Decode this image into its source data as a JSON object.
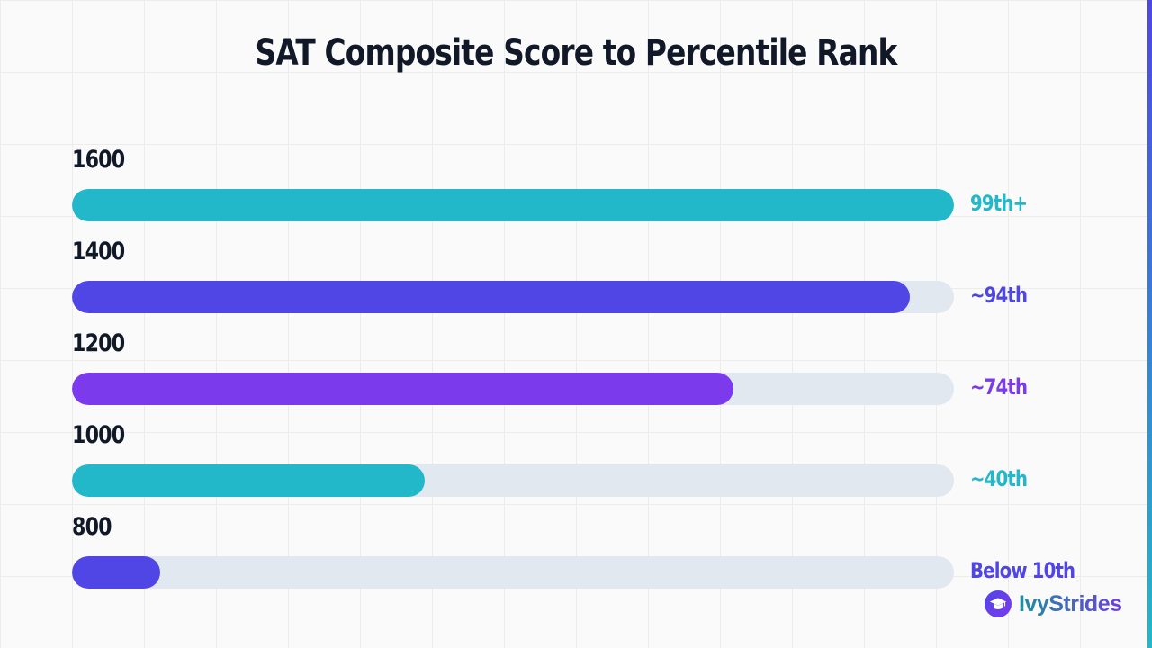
{
  "chart_data": {
    "type": "bar",
    "orientation": "horizontal",
    "title": "SAT Composite Score to Percentile Rank",
    "categories": [
      "1600",
      "1400",
      "1200",
      "1000",
      "800"
    ],
    "values": [
      100,
      95,
      75,
      40,
      10
    ],
    "value_labels": [
      "99th+",
      "~94th",
      "~74th",
      "~40th",
      "Below 10th"
    ],
    "bar_colors": [
      "#22b8c9",
      "#4f46e5",
      "#7c3aed",
      "#22b8c9",
      "#4f46e5"
    ],
    "xlim": [
      0,
      100
    ],
    "grid": true,
    "legend": "none"
  },
  "brand": {
    "name": "IvyStrides",
    "icon": "graduation-cap-icon"
  },
  "colors": {
    "track": "#e2e8f0",
    "text": "#111827",
    "accent_edge_top": "#4f46e5",
    "accent_edge_bottom": "#22b8c9"
  }
}
